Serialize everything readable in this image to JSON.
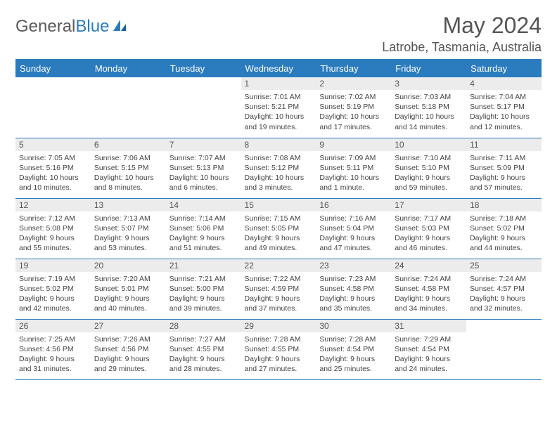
{
  "brand": {
    "part1": "General",
    "part2": "Blue"
  },
  "title": "May 2024",
  "location": "Latrobe, Tasmania, Australia",
  "day_labels": [
    "Sunday",
    "Monday",
    "Tuesday",
    "Wednesday",
    "Thursday",
    "Friday",
    "Saturday"
  ],
  "colors": {
    "header_bg": "#2b7bbf",
    "daynum_bg": "#ececec",
    "rule": "#2b7bbf",
    "text": "#444444"
  },
  "weeks": [
    [
      {
        "n": "",
        "sr": "",
        "ss": "",
        "dl": ""
      },
      {
        "n": "",
        "sr": "",
        "ss": "",
        "dl": ""
      },
      {
        "n": "",
        "sr": "",
        "ss": "",
        "dl": ""
      },
      {
        "n": "1",
        "sr": "Sunrise: 7:01 AM",
        "ss": "Sunset: 5:21 PM",
        "dl": "Daylight: 10 hours and 19 minutes."
      },
      {
        "n": "2",
        "sr": "Sunrise: 7:02 AM",
        "ss": "Sunset: 5:19 PM",
        "dl": "Daylight: 10 hours and 17 minutes."
      },
      {
        "n": "3",
        "sr": "Sunrise: 7:03 AM",
        "ss": "Sunset: 5:18 PM",
        "dl": "Daylight: 10 hours and 14 minutes."
      },
      {
        "n": "4",
        "sr": "Sunrise: 7:04 AM",
        "ss": "Sunset: 5:17 PM",
        "dl": "Daylight: 10 hours and 12 minutes."
      }
    ],
    [
      {
        "n": "5",
        "sr": "Sunrise: 7:05 AM",
        "ss": "Sunset: 5:16 PM",
        "dl": "Daylight: 10 hours and 10 minutes."
      },
      {
        "n": "6",
        "sr": "Sunrise: 7:06 AM",
        "ss": "Sunset: 5:15 PM",
        "dl": "Daylight: 10 hours and 8 minutes."
      },
      {
        "n": "7",
        "sr": "Sunrise: 7:07 AM",
        "ss": "Sunset: 5:13 PM",
        "dl": "Daylight: 10 hours and 6 minutes."
      },
      {
        "n": "8",
        "sr": "Sunrise: 7:08 AM",
        "ss": "Sunset: 5:12 PM",
        "dl": "Daylight: 10 hours and 3 minutes."
      },
      {
        "n": "9",
        "sr": "Sunrise: 7:09 AM",
        "ss": "Sunset: 5:11 PM",
        "dl": "Daylight: 10 hours and 1 minute."
      },
      {
        "n": "10",
        "sr": "Sunrise: 7:10 AM",
        "ss": "Sunset: 5:10 PM",
        "dl": "Daylight: 9 hours and 59 minutes."
      },
      {
        "n": "11",
        "sr": "Sunrise: 7:11 AM",
        "ss": "Sunset: 5:09 PM",
        "dl": "Daylight: 9 hours and 57 minutes."
      }
    ],
    [
      {
        "n": "12",
        "sr": "Sunrise: 7:12 AM",
        "ss": "Sunset: 5:08 PM",
        "dl": "Daylight: 9 hours and 55 minutes."
      },
      {
        "n": "13",
        "sr": "Sunrise: 7:13 AM",
        "ss": "Sunset: 5:07 PM",
        "dl": "Daylight: 9 hours and 53 minutes."
      },
      {
        "n": "14",
        "sr": "Sunrise: 7:14 AM",
        "ss": "Sunset: 5:06 PM",
        "dl": "Daylight: 9 hours and 51 minutes."
      },
      {
        "n": "15",
        "sr": "Sunrise: 7:15 AM",
        "ss": "Sunset: 5:05 PM",
        "dl": "Daylight: 9 hours and 49 minutes."
      },
      {
        "n": "16",
        "sr": "Sunrise: 7:16 AM",
        "ss": "Sunset: 5:04 PM",
        "dl": "Daylight: 9 hours and 47 minutes."
      },
      {
        "n": "17",
        "sr": "Sunrise: 7:17 AM",
        "ss": "Sunset: 5:03 PM",
        "dl": "Daylight: 9 hours and 46 minutes."
      },
      {
        "n": "18",
        "sr": "Sunrise: 7:18 AM",
        "ss": "Sunset: 5:02 PM",
        "dl": "Daylight: 9 hours and 44 minutes."
      }
    ],
    [
      {
        "n": "19",
        "sr": "Sunrise: 7:19 AM",
        "ss": "Sunset: 5:02 PM",
        "dl": "Daylight: 9 hours and 42 minutes."
      },
      {
        "n": "20",
        "sr": "Sunrise: 7:20 AM",
        "ss": "Sunset: 5:01 PM",
        "dl": "Daylight: 9 hours and 40 minutes."
      },
      {
        "n": "21",
        "sr": "Sunrise: 7:21 AM",
        "ss": "Sunset: 5:00 PM",
        "dl": "Daylight: 9 hours and 39 minutes."
      },
      {
        "n": "22",
        "sr": "Sunrise: 7:22 AM",
        "ss": "Sunset: 4:59 PM",
        "dl": "Daylight: 9 hours and 37 minutes."
      },
      {
        "n": "23",
        "sr": "Sunrise: 7:23 AM",
        "ss": "Sunset: 4:58 PM",
        "dl": "Daylight: 9 hours and 35 minutes."
      },
      {
        "n": "24",
        "sr": "Sunrise: 7:24 AM",
        "ss": "Sunset: 4:58 PM",
        "dl": "Daylight: 9 hours and 34 minutes."
      },
      {
        "n": "25",
        "sr": "Sunrise: 7:24 AM",
        "ss": "Sunset: 4:57 PM",
        "dl": "Daylight: 9 hours and 32 minutes."
      }
    ],
    [
      {
        "n": "26",
        "sr": "Sunrise: 7:25 AM",
        "ss": "Sunset: 4:56 PM",
        "dl": "Daylight: 9 hours and 31 minutes."
      },
      {
        "n": "27",
        "sr": "Sunrise: 7:26 AM",
        "ss": "Sunset: 4:56 PM",
        "dl": "Daylight: 9 hours and 29 minutes."
      },
      {
        "n": "28",
        "sr": "Sunrise: 7:27 AM",
        "ss": "Sunset: 4:55 PM",
        "dl": "Daylight: 9 hours and 28 minutes."
      },
      {
        "n": "29",
        "sr": "Sunrise: 7:28 AM",
        "ss": "Sunset: 4:55 PM",
        "dl": "Daylight: 9 hours and 27 minutes."
      },
      {
        "n": "30",
        "sr": "Sunrise: 7:28 AM",
        "ss": "Sunset: 4:54 PM",
        "dl": "Daylight: 9 hours and 25 minutes."
      },
      {
        "n": "31",
        "sr": "Sunrise: 7:29 AM",
        "ss": "Sunset: 4:54 PM",
        "dl": "Daylight: 9 hours and 24 minutes."
      },
      {
        "n": "",
        "sr": "",
        "ss": "",
        "dl": ""
      }
    ]
  ]
}
